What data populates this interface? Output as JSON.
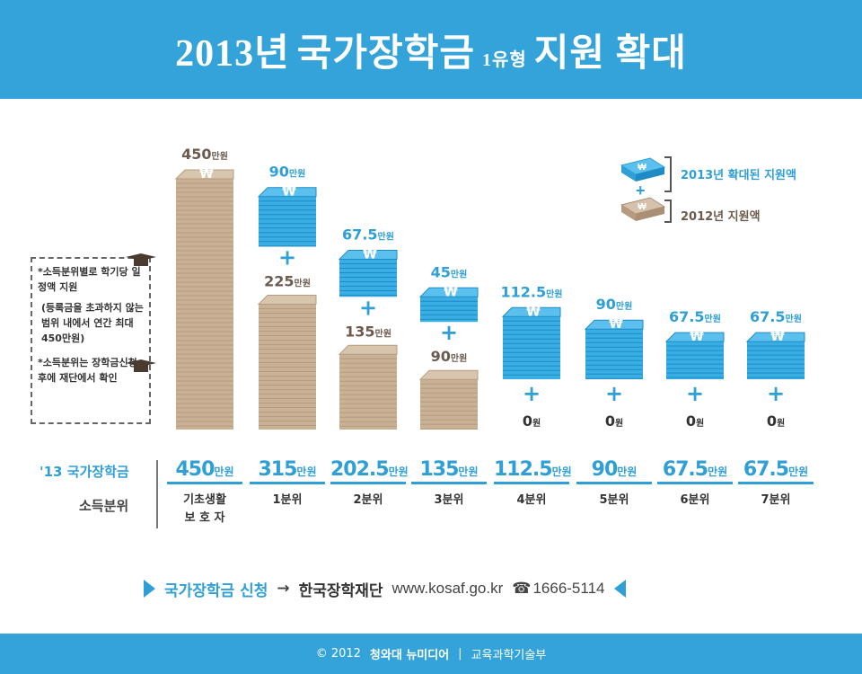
{
  "header": {
    "title_year": "2013년",
    "title_main": "국가장학금",
    "title_type": "1유형",
    "title_end": "지원 확대"
  },
  "legend": {
    "new_label": "2013년 확대된 지원액",
    "old_label": "2012년 지원액",
    "plus": "+"
  },
  "notes": {
    "note1": "*소득분위별로 학기당 일정액 지원",
    "note2": "(등록금을 초과하지 않는 범위 내에서 연간 최대 450만원)",
    "note3": "*소득분위는 장학금신청 후에 재단에서 확인"
  },
  "table": {
    "row_total_label": "'13 국가장학금",
    "row_quintile_label": "소득분위",
    "unit": "만원"
  },
  "colors": {
    "blue": "#2f9fd6",
    "brown": "#c5ab8e",
    "brown_dark": "#a88f75",
    "header_blue": "#33a3d9"
  },
  "chart_data": {
    "type": "bar",
    "title": "2013년 국가장학금 1유형 지원 확대",
    "categories": [
      "기초생활\n보 호 자",
      "1분위",
      "2분위",
      "3분위",
      "4분위",
      "5분위",
      "6분위",
      "7분위"
    ],
    "series": [
      {
        "name": "2012년 지원액",
        "values": [
          450,
          225,
          135,
          90,
          0,
          0,
          0,
          0
        ]
      },
      {
        "name": "2013년 확대된 지원액",
        "values": [
          0,
          90,
          67.5,
          45,
          112.5,
          90,
          67.5,
          67.5
        ]
      }
    ],
    "top_labels": [
      "450",
      "90",
      "67.5",
      "45",
      "112.5",
      "90",
      "67.5",
      "67.5"
    ],
    "base_labels": [
      "",
      "225",
      "135",
      "90",
      "0",
      "0",
      "0",
      "0"
    ],
    "totals": [
      "450",
      "315",
      "202.5",
      "135",
      "112.5",
      "90",
      "67.5",
      "67.5"
    ],
    "unit": "만원",
    "zero_unit": "원",
    "ylabel": "",
    "xlabel": ""
  },
  "footer": {
    "apply": "국가장학금 신청",
    "arrow": "→",
    "org": "한국장학재단",
    "url": "www.kosaf.go.kr",
    "phone_icon": "☎",
    "phone": "1666-5114"
  },
  "credit": {
    "copyright": "© 2012",
    "maker": "청와대 뉴미디어",
    "sep": "|",
    "ministry": "교육과학기술부"
  }
}
